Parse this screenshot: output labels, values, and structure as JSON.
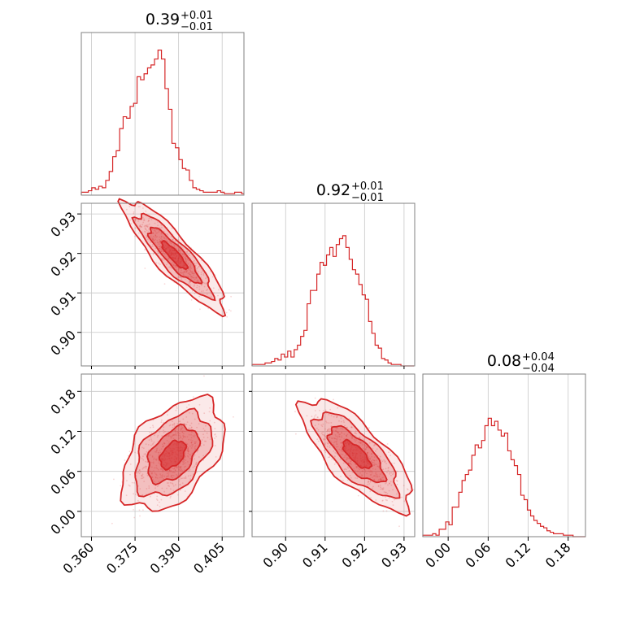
{
  "chart_data": {
    "type": "corner",
    "color": "#d62728",
    "parameters": [
      {
        "title_value": "0.39",
        "plus": "+0.01",
        "minus": "−0.01",
        "range": [
          0.3565,
          0.4125
        ],
        "ticks": [
          0.36,
          0.375,
          0.39,
          0.405
        ],
        "tick_labels": [
          "0.360",
          "0.375",
          "0.390",
          "0.405"
        ]
      },
      {
        "title_value": "0.92",
        "plus": "+0.01",
        "minus": "−0.01",
        "range": [
          0.8915,
          0.9327
        ],
        "ticks": [
          0.9,
          0.91,
          0.92,
          0.93
        ],
        "tick_labels": [
          "0.90",
          "0.91",
          "0.92",
          "0.93"
        ]
      },
      {
        "title_value": "0.08",
        "plus": "+0.04",
        "minus": "−0.04",
        "range": [
          -0.038,
          0.206
        ],
        "ticks": [
          0.0,
          0.06,
          0.12,
          0.18
        ],
        "tick_labels": [
          "0.00",
          "0.06",
          "0.12",
          "0.18"
        ]
      }
    ],
    "histograms": [
      {
        "x_start": 0.3565,
        "bin_width": 0.0012,
        "values": [
          0.02,
          0.02,
          0.03,
          0.05,
          0.04,
          0.06,
          0.05,
          0.1,
          0.16,
          0.26,
          0.3,
          0.45,
          0.53,
          0.52,
          0.6,
          0.62,
          0.8,
          0.78,
          0.82,
          0.86,
          0.88,
          0.92,
          0.98,
          0.92,
          0.72,
          0.58,
          0.35,
          0.32,
          0.24,
          0.18,
          0.17,
          0.1,
          0.05,
          0.04,
          0.03,
          0.02,
          0.02,
          0.02,
          0.02,
          0.03,
          0.02,
          0.01,
          0.01,
          0.01,
          0.02,
          0.02,
          0.01
        ]
      },
      {
        "x_start": 0.8915,
        "bin_width": 0.00082,
        "values": [
          0.01,
          0.01,
          0.01,
          0.01,
          0.02,
          0.02,
          0.03,
          0.05,
          0.04,
          0.08,
          0.06,
          0.1,
          0.06,
          0.11,
          0.14,
          0.2,
          0.24,
          0.42,
          0.51,
          0.51,
          0.62,
          0.7,
          0.68,
          0.75,
          0.8,
          0.74,
          0.82,
          0.86,
          0.88,
          0.8,
          0.72,
          0.65,
          0.62,
          0.55,
          0.48,
          0.45,
          0.3,
          0.22,
          0.14,
          0.12,
          0.05,
          0.04,
          0.02,
          0.01,
          0.01,
          0.01,
          0.0,
          0.0,
          0.0,
          0.0
        ]
      },
      {
        "x_start": -0.038,
        "bin_width": 0.0049,
        "values": [
          0.01,
          0.01,
          0.01,
          0.02,
          0.01,
          0.05,
          0.05,
          0.1,
          0.08,
          0.2,
          0.2,
          0.3,
          0.38,
          0.42,
          0.45,
          0.55,
          0.62,
          0.6,
          0.65,
          0.75,
          0.8,
          0.75,
          0.78,
          0.72,
          0.68,
          0.7,
          0.58,
          0.52,
          0.48,
          0.42,
          0.28,
          0.25,
          0.18,
          0.14,
          0.11,
          0.09,
          0.07,
          0.06,
          0.04,
          0.03,
          0.02,
          0.02,
          0.02,
          0.01,
          0.01,
          0.01,
          0.0,
          0.0,
          0.0,
          0.0
        ]
      }
    ],
    "pairs": [
      {
        "x_param": 0,
        "y_param": 1,
        "center": [
          0.3885,
          0.9195
        ],
        "sd": [
          0.0065,
          0.0052
        ],
        "rho": -0.88
      },
      {
        "x_param": 0,
        "y_param": 2,
        "center": [
          0.388,
          0.085
        ],
        "sd": [
          0.0065,
          0.031
        ],
        "rho": 0.45
      },
      {
        "x_param": 1,
        "y_param": 2,
        "center": [
          0.918,
          0.085
        ],
        "sd": [
          0.0052,
          0.031
        ],
        "rho": -0.75
      }
    ],
    "contour_levels_sigma": [
      0.5,
      1.0,
      1.5,
      2.0
    ]
  }
}
